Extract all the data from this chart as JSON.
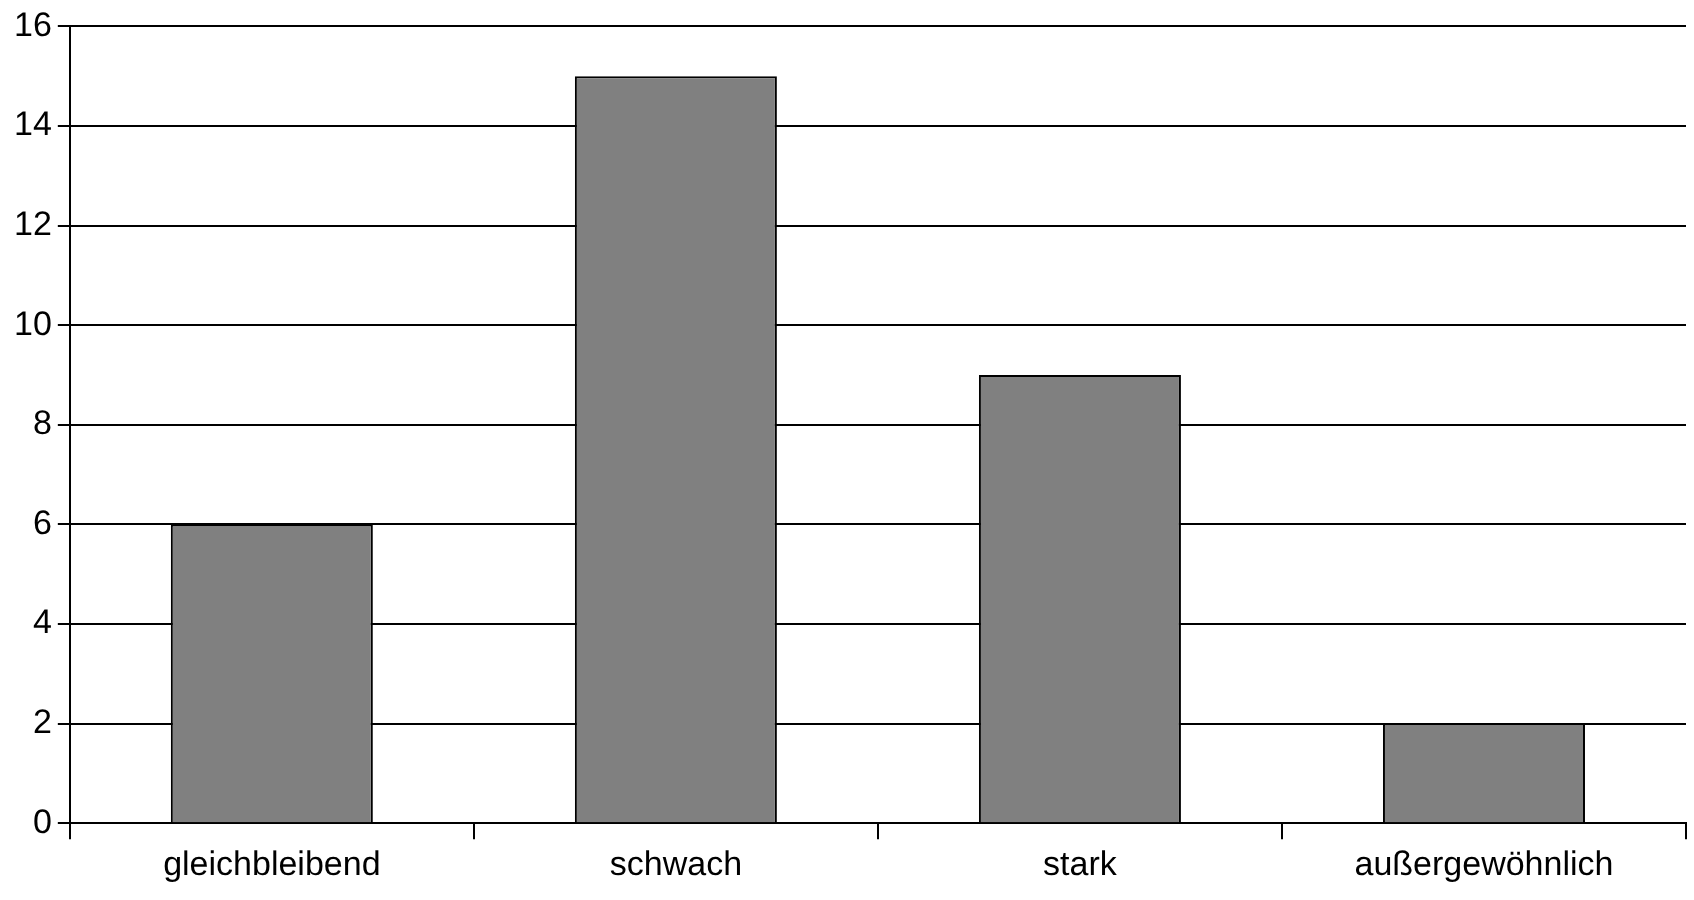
{
  "chart_data": {
    "type": "bar",
    "categories": [
      "gleichbleibend",
      "schwach",
      "stark",
      "außergewöhnlich"
    ],
    "values": [
      6,
      15,
      9,
      2
    ],
    "color": "#808080",
    "ylim": [
      0,
      16
    ],
    "yticks": [
      0,
      2,
      4,
      6,
      8,
      10,
      12,
      14,
      16
    ],
    "grid": "y",
    "legend": false
  }
}
